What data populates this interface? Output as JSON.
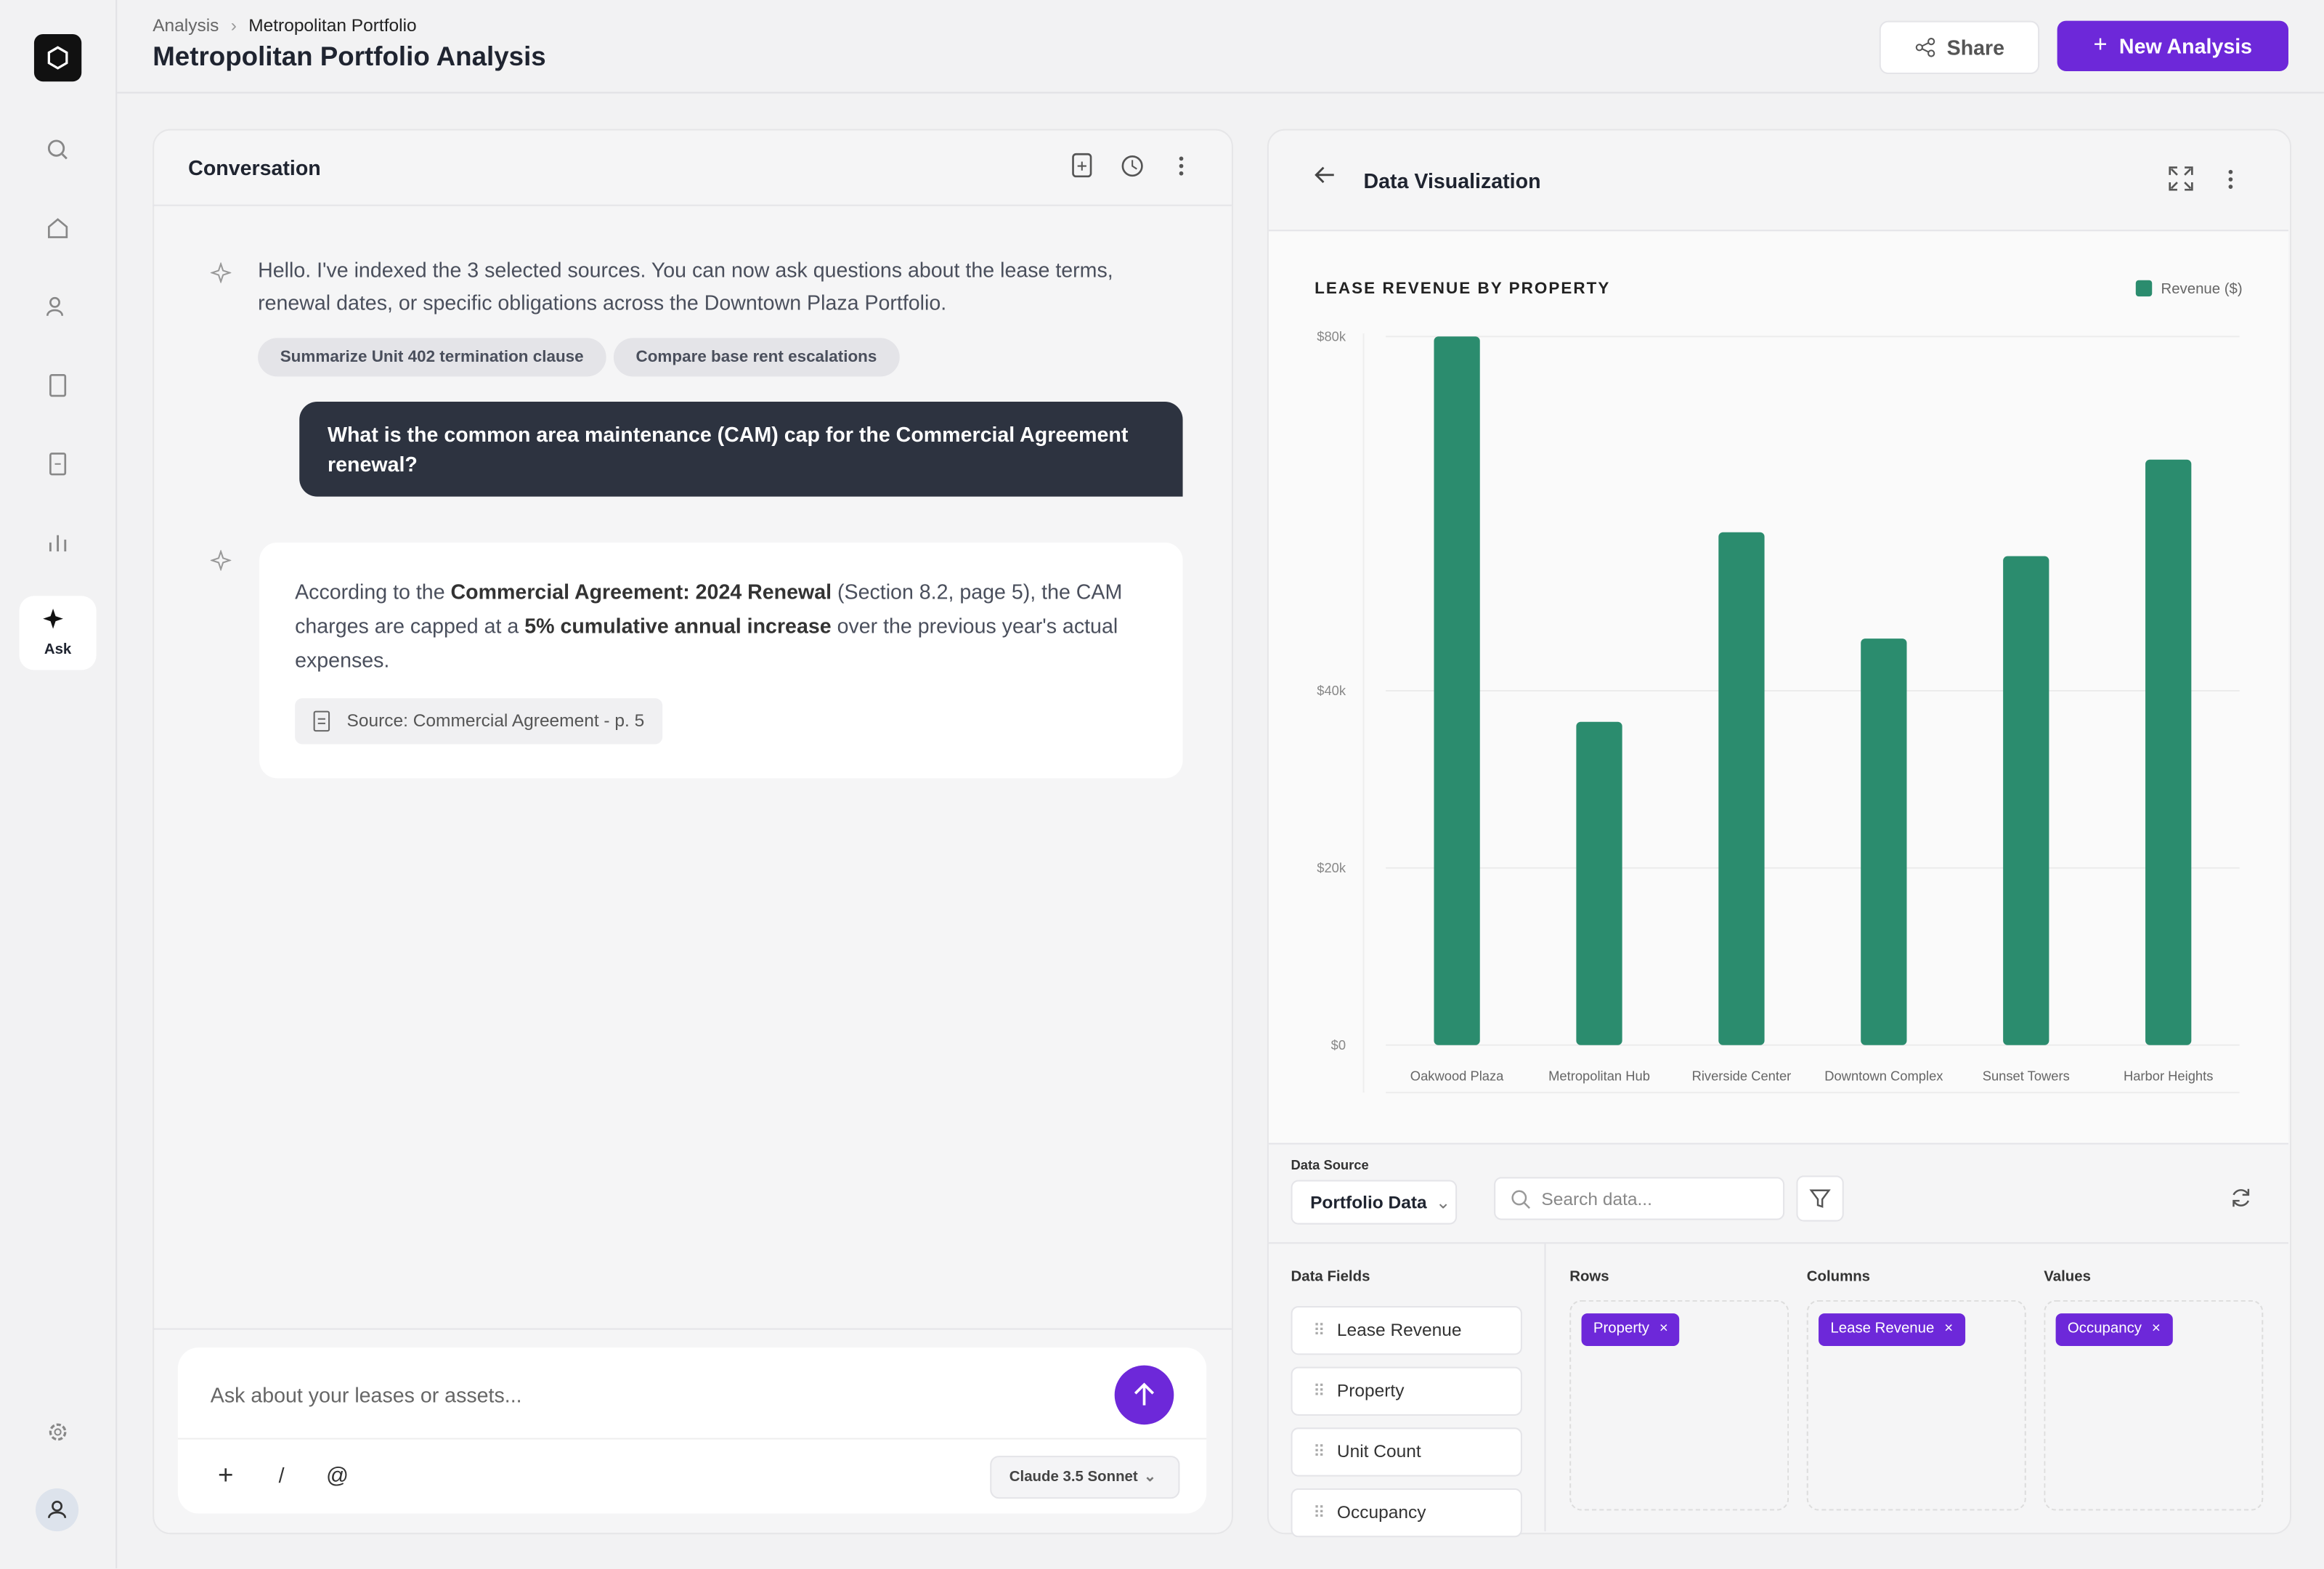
{
  "sidebar": {
    "ask": "Ask"
  },
  "header": {
    "breadcrumb": [
      "Analysis",
      "Metropolitan Portfolio"
    ],
    "title": "Metropolitan Portfolio Analysis",
    "share": "Share",
    "new_analysis": "New Analysis"
  },
  "conversation": {
    "title": "Conversation",
    "greeting": "Hello. I've indexed the 3 selected sources. You can now ask questions about the lease terms, renewal dates, or specific obligations across the Downtown Plaza Portfolio.",
    "suggestions": [
      "Summarize Unit 402 termination clause",
      "Compare base rent escalations"
    ],
    "question": "What is the common area maintenance (CAM) cap for the Commercial Agreement renewal?",
    "answer": [
      "According to the ",
      "Commercial Agreement: 2024 Renewal",
      " (Section 8.2, page 5), the CAM charges are capped at a ",
      "5% cumulative annual increase",
      " over the previous year's actual expenses."
    ],
    "source": "Source: Commercial Agreement - p. 5",
    "input_placeholder": "Ask about your leases or assets...",
    "slash": "/",
    "at": "@",
    "model": "Claude 3.5 Sonnet"
  },
  "visualization": {
    "title": "Data Visualization",
    "data_source_label": "Data Source",
    "data_source": "Portfolio Data",
    "search_placeholder": "Search data...",
    "data_fields_label": "Data Fields",
    "fields": [
      "Lease Revenue",
      "Property",
      "Unit Count",
      "Occupancy"
    ],
    "zones": [
      {
        "label": "Rows",
        "tag": "Property"
      },
      {
        "label": "Columns",
        "tag": "Lease Revenue"
      },
      {
        "label": "Values",
        "tag": "Occupancy"
      }
    ]
  },
  "chart_data": {
    "type": "bar",
    "title": "LEASE REVENUE BY PROPERTY",
    "categories": [
      "Oakwood Plaza",
      "Metropolitan Hub",
      "Riverside Center",
      "Downtown Complex",
      "Sunset Towers",
      "Harbor Heights"
    ],
    "series": [
      {
        "name": "Revenue ($)",
        "color": "#2b8c6e",
        "values": [
          80000,
          36500,
          57900,
          45900,
          55200,
          66100
        ]
      }
    ],
    "ylim": [
      0,
      80000
    ],
    "yticks": [
      {
        "value": 0,
        "label": "$0"
      },
      {
        "value": 20000,
        "label": "$20k"
      },
      {
        "value": 40000,
        "label": "$40k"
      },
      {
        "value": 80000,
        "label": "$80k"
      }
    ],
    "grid": true,
    "legend": "top-right"
  }
}
